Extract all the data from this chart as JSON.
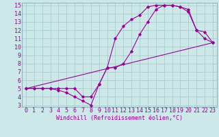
{
  "xlabel": "Windchill (Refroidissement éolien,°C)",
  "bg_color": "#cce8e8",
  "grid_color": "#aacccc",
  "line_color": "#990099",
  "spine_color": "#7799aa",
  "xlim": [
    -0.5,
    23.5
  ],
  "ylim": [
    2.8,
    15.3
  ],
  "xticks": [
    0,
    1,
    2,
    3,
    4,
    5,
    6,
    7,
    8,
    9,
    10,
    11,
    12,
    13,
    14,
    15,
    16,
    17,
    18,
    19,
    20,
    21,
    22,
    23
  ],
  "yticks": [
    3,
    4,
    5,
    6,
    7,
    8,
    9,
    10,
    11,
    12,
    13,
    14,
    15
  ],
  "line1_x": [
    0,
    1,
    2,
    3,
    4,
    5,
    6,
    7,
    8,
    9,
    10,
    11,
    12,
    13,
    14,
    15,
    16,
    17,
    18,
    19,
    20,
    21,
    22,
    23
  ],
  "line1_y": [
    5,
    5,
    5,
    5,
    5,
    5,
    5,
    4,
    4,
    5.5,
    7.5,
    11,
    12.5,
    13.3,
    13.8,
    14.8,
    15,
    15,
    15,
    14.8,
    14.2,
    12,
    11.8,
    10.5
  ],
  "line2_x": [
    0,
    1,
    2,
    3,
    4,
    5,
    6,
    7,
    8,
    9,
    10,
    11,
    12,
    13,
    14,
    15,
    16,
    17,
    18,
    19,
    20,
    21,
    22,
    23
  ],
  "line2_y": [
    5,
    5,
    5,
    5,
    4.8,
    4.5,
    4,
    3.5,
    3,
    5.5,
    7.5,
    7.5,
    8,
    9.5,
    11.5,
    13,
    14.5,
    15,
    15,
    14.8,
    14.5,
    12,
    11,
    10.5
  ],
  "line3_x": [
    0,
    23
  ],
  "line3_y": [
    5,
    10.5
  ],
  "xlabel_fontsize": 6,
  "tick_fontsize": 6
}
